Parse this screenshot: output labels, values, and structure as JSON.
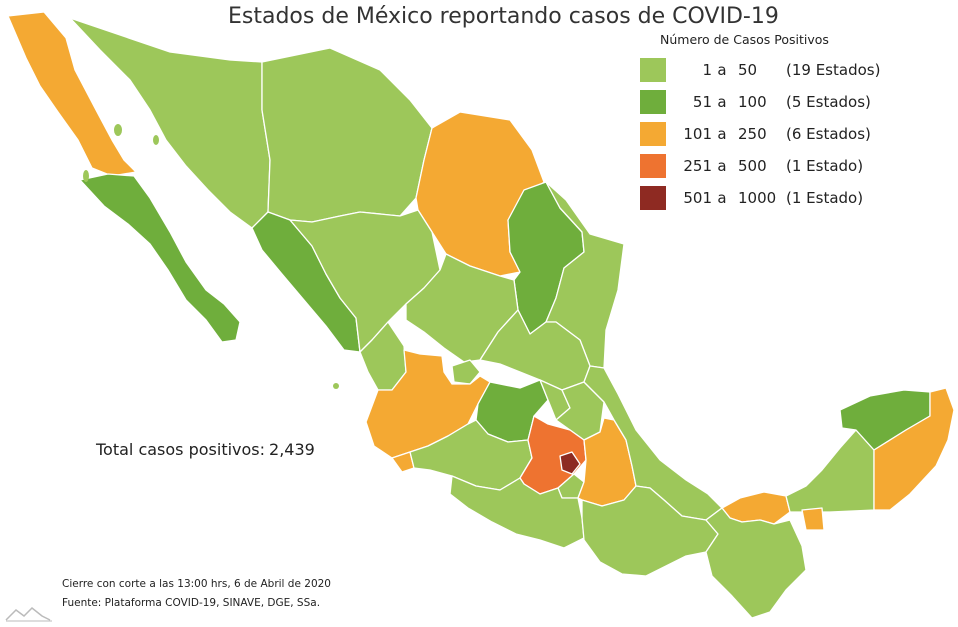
{
  "title": "Estados de México reportando casos de COVID-19",
  "legend": {
    "title": "Número de Casos Positivos",
    "rows": [
      {
        "lo": "1",
        "hi": "50",
        "count": "(19 Estados)",
        "color": "#9dc75a"
      },
      {
        "lo": "51",
        "hi": "100",
        "count": "(5 Estados)",
        "color": "#6fae3c"
      },
      {
        "lo": "101",
        "hi": "250",
        "count": "(6 Estados)",
        "color": "#f4a933"
      },
      {
        "lo": "251",
        "hi": "500",
        "count": "(1 Estado)",
        "color": "#ee7330"
      },
      {
        "lo": "501",
        "hi": "1000",
        "count": "(1 Estado)",
        "color": "#8e2a22"
      }
    ],
    "joiner": "a"
  },
  "total": {
    "label": "Total casos positivos:",
    "value": "2,439"
  },
  "footnotes": {
    "cutoff": "Cierre con corte a las 13:00 hrs, 6 de Abril de 2020",
    "source": "Fuente: Plataforma COVID-19, SINAVE, DGE, SSa."
  },
  "colors": {
    "border": "#ffffff"
  }
}
